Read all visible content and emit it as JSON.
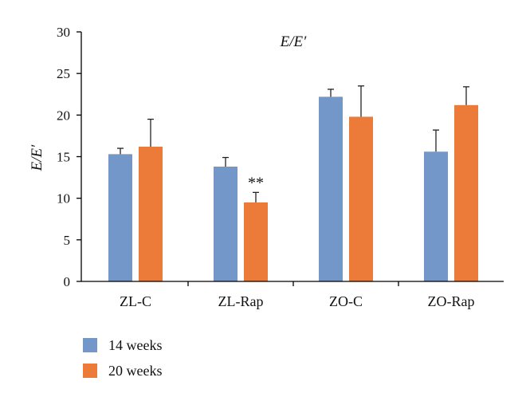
{
  "chart_data": {
    "type": "bar",
    "title": "E/E′",
    "ylabel": "E/E′",
    "xlabel": "",
    "categories": [
      "ZL-C",
      "ZL-Rap",
      "ZO-C",
      "ZO-Rap"
    ],
    "series": [
      {
        "name": "14 weeks",
        "color": "#7397c8",
        "values": [
          15.3,
          13.8,
          22.2,
          15.6
        ],
        "errors": [
          0.7,
          1.1,
          0.9,
          2.6
        ]
      },
      {
        "name": "20 weeks",
        "color": "#ec7a38",
        "values": [
          16.2,
          9.5,
          19.8,
          21.2
        ],
        "errors": [
          3.3,
          1.2,
          3.7,
          2.2
        ]
      }
    ],
    "ylim": [
      0,
      30
    ],
    "yticks": [
      "0",
      "5",
      "10",
      "15",
      "20",
      "25",
      "30"
    ],
    "annotations": [
      {
        "category": "ZL-Rap",
        "series": "20 weeks",
        "text": "**"
      }
    ],
    "grid": false,
    "legend_position": "bottom-left"
  }
}
